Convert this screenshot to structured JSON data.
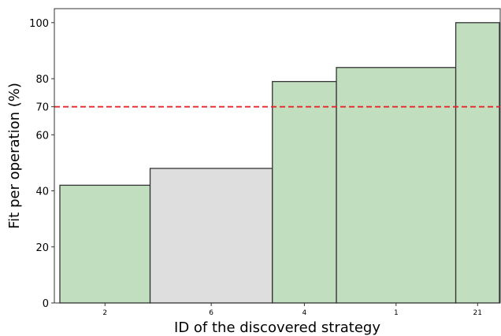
{
  "chart_data": {
    "type": "bar",
    "categories": [
      "2",
      "6",
      "4",
      "1",
      "21"
    ],
    "values": [
      42,
      48,
      79,
      84,
      100
    ],
    "widths": [
      1.55,
      2.1,
      1.1,
      2.05,
      0.75
    ],
    "colors": [
      "#c1dfbe",
      "#dedede",
      "#c1dfbe",
      "#c1dfbe",
      "#c1dfbe"
    ],
    "bar_edge_color": "#333333",
    "xlabel": "ID of the discovered strategy",
    "ylabel": "Fit per operation (%)",
    "ylim": [
      0,
      105
    ],
    "yticks": [
      0,
      20,
      40,
      60,
      70,
      80,
      100
    ],
    "reference_line": {
      "y": 70,
      "color": "#e8262a",
      "style": "dashed"
    },
    "grid": false,
    "legend": false
  }
}
